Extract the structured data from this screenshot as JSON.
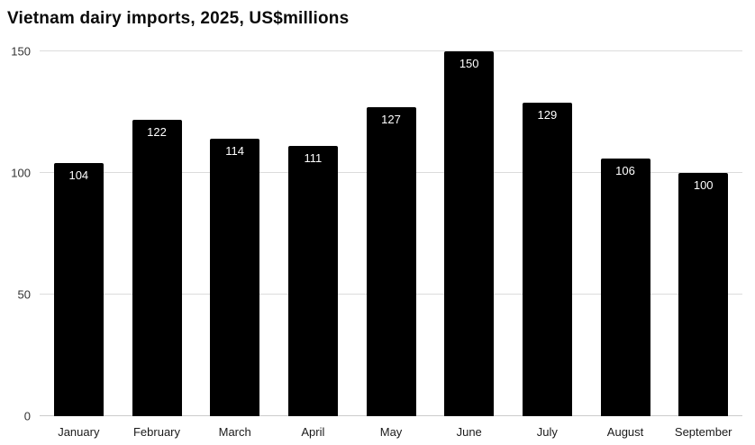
{
  "title": "Vietnam dairy imports, 2025, US$millions",
  "chart_data": {
    "type": "bar",
    "title": "Vietnam dairy imports, 2025, US$millions",
    "categories": [
      "January",
      "February",
      "March",
      "April",
      "May",
      "June",
      "July",
      "August",
      "September"
    ],
    "values": [
      104,
      122,
      114,
      111,
      127,
      150,
      129,
      106,
      100
    ],
    "xlabel": "",
    "ylabel": "",
    "ylim": [
      0,
      150
    ],
    "yticks": [
      0,
      50,
      100,
      150
    ],
    "grid": true,
    "legend": false,
    "bar_color": "#000000",
    "value_label_color": "#ffffff"
  }
}
